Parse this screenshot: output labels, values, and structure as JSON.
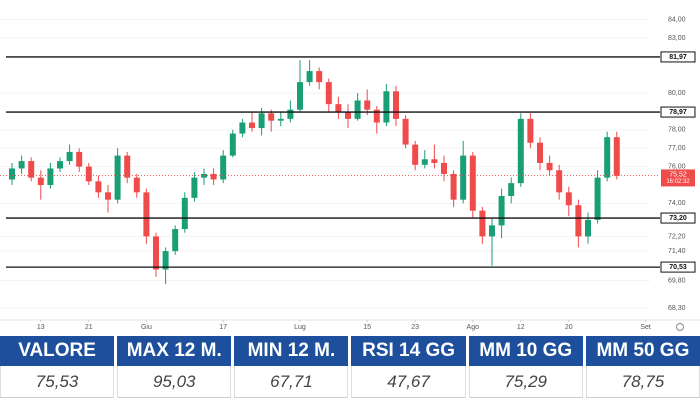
{
  "chart_data": {
    "type": "candlestick",
    "x": [
      0,
      1,
      2,
      3,
      4,
      5,
      6,
      7,
      8,
      9,
      10,
      11,
      12,
      13,
      14,
      15,
      16,
      17,
      18,
      19,
      20,
      21,
      22,
      23,
      24,
      25,
      26,
      27,
      28,
      29,
      30,
      31,
      32,
      33,
      34,
      35,
      36,
      37,
      38,
      39,
      40,
      41,
      42,
      43,
      44,
      45,
      46,
      47,
      48,
      49,
      50,
      51,
      52,
      53,
      54,
      55,
      56,
      57,
      58,
      59,
      60,
      61,
      62,
      63
    ],
    "open": [
      75.3,
      75.9,
      76.3,
      75.4,
      75.0,
      75.9,
      76.3,
      76.8,
      76.0,
      75.2,
      74.6,
      74.2,
      76.6,
      75.4,
      74.6,
      72.2,
      70.4,
      71.4,
      72.6,
      74.3,
      75.4,
      75.6,
      75.3,
      76.6,
      77.8,
      78.4,
      78.1,
      78.9,
      78.5,
      78.6,
      79.1,
      80.6,
      81.2,
      80.6,
      79.4,
      79.0,
      78.6,
      79.6,
      79.1,
      78.4,
      80.1,
      78.6,
      77.2,
      76.1,
      76.4,
      76.2,
      75.6,
      74.2,
      76.6,
      73.6,
      72.2,
      72.8,
      74.4,
      75.1,
      78.6,
      77.3,
      76.2,
      75.8,
      74.6,
      73.9,
      72.2,
      73.1,
      75.4,
      77.6
    ],
    "high": [
      76.2,
      76.6,
      76.5,
      75.8,
      76.2,
      76.5,
      77.2,
      77.0,
      76.2,
      75.5,
      75.0,
      77.0,
      76.8,
      75.6,
      74.8,
      72.4,
      71.6,
      72.8,
      74.6,
      75.7,
      75.9,
      75.9,
      76.9,
      78.0,
      78.6,
      79.0,
      79.2,
      79.1,
      79.0,
      79.6,
      81.8,
      81.8,
      81.4,
      80.8,
      79.8,
      79.4,
      80.0,
      80.2,
      79.3,
      80.5,
      80.4,
      78.8,
      77.4,
      76.9,
      77.2,
      76.6,
      75.8,
      77.4,
      76.8,
      73.8,
      73.2,
      74.8,
      75.4,
      78.9,
      78.9,
      77.6,
      76.6,
      76.1,
      74.9,
      74.2,
      73.5,
      75.8,
      77.9,
      77.9
    ],
    "low": [
      75.0,
      75.6,
      75.2,
      74.2,
      74.8,
      75.7,
      76.1,
      75.7,
      75.0,
      74.3,
      73.5,
      74.0,
      75.1,
      74.3,
      71.8,
      70.0,
      69.6,
      71.2,
      72.4,
      74.1,
      75.0,
      75.0,
      75.1,
      76.5,
      77.6,
      77.9,
      77.7,
      77.9,
      78.2,
      78.4,
      79.0,
      80.4,
      80.2,
      79.0,
      78.6,
      78.1,
      78.5,
      78.8,
      77.8,
      78.2,
      78.2,
      77.0,
      75.8,
      75.9,
      75.9,
      75.2,
      73.8,
      74.0,
      73.2,
      71.8,
      70.6,
      72.1,
      74.0,
      74.9,
      77.0,
      75.8,
      75.5,
      74.2,
      73.3,
      71.6,
      71.8,
      72.9,
      75.2,
      75.3
    ],
    "close": [
      75.9,
      76.3,
      75.4,
      75.0,
      75.9,
      76.3,
      76.8,
      76.0,
      75.2,
      74.6,
      74.2,
      76.6,
      75.4,
      74.6,
      72.2,
      70.4,
      71.4,
      72.6,
      74.3,
      75.4,
      75.6,
      75.3,
      76.6,
      77.8,
      78.4,
      78.1,
      78.9,
      78.5,
      78.6,
      79.1,
      80.6,
      81.2,
      80.6,
      79.4,
      79.0,
      78.6,
      79.6,
      79.1,
      78.4,
      80.1,
      78.6,
      77.2,
      76.1,
      76.4,
      76.2,
      75.6,
      74.2,
      76.6,
      73.6,
      72.2,
      72.8,
      74.4,
      75.1,
      78.6,
      77.3,
      76.2,
      75.8,
      74.6,
      73.9,
      72.2,
      73.1,
      75.4,
      77.6,
      75.5
    ],
    "up_color": "#1a9e76",
    "down_color": "#ef4b4b",
    "xlim": [
      -1.25,
      66.46
    ],
    "xticks": [
      {
        "value": 3,
        "label": "13"
      },
      {
        "value": 8,
        "label": "21"
      },
      {
        "value": 14,
        "label": "Giu"
      },
      {
        "value": 22,
        "label": "17"
      },
      {
        "value": 30,
        "label": "Lug"
      },
      {
        "value": 37,
        "label": "15"
      },
      {
        "value": 42,
        "label": "23"
      },
      {
        "value": 48,
        "label": "Ago"
      },
      {
        "value": 53,
        "label": "12"
      },
      {
        "value": 58,
        "label": "20"
      },
      {
        "value": 66,
        "label": "Set"
      }
    ],
    "ylim": [
      67.65,
      85.07
    ],
    "yticks": [
      {
        "value": 84,
        "label": "84,00"
      },
      {
        "value": 83,
        "label": "83,00"
      },
      {
        "value": 80,
        "label": "80,00"
      },
      {
        "value": 78,
        "label": "78,00"
      },
      {
        "value": 77,
        "label": "77,00"
      },
      {
        "value": 76,
        "label": "76,00"
      },
      {
        "value": 74,
        "label": "74,00"
      },
      {
        "value": 72.2,
        "label": "72,20"
      },
      {
        "value": 71.4,
        "label": "71,40"
      },
      {
        "value": 69.8,
        "label": "69,80"
      },
      {
        "value": 68.3,
        "label": "68,30"
      }
    ],
    "levels": [
      {
        "value": 81.97,
        "label": "81,97"
      },
      {
        "value": 78.97,
        "label": "78,97"
      },
      {
        "value": 73.2,
        "label": "73,20"
      },
      {
        "value": 70.53,
        "label": "70,53"
      }
    ],
    "current_price": {
      "value": 75.52,
      "label": "75,52"
    },
    "countdown": "16:02:32",
    "grid": true
  },
  "table": {
    "headers": [
      "VALORE",
      "MAX 12 M.",
      "MIN 12 M.",
      "RSI 14 GG",
      "MM 10 GG",
      "MM 50 GG"
    ],
    "values": [
      "75,53",
      "95,03",
      "67,71",
      "47,67",
      "75,29",
      "78,75"
    ]
  }
}
